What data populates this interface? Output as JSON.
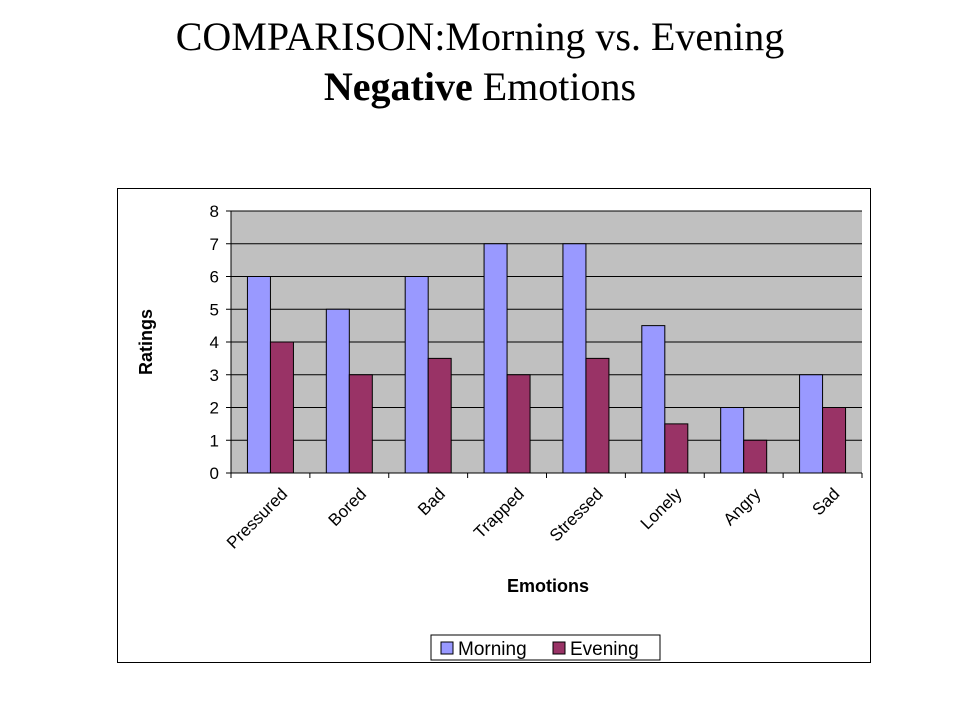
{
  "title": {
    "line1": "COMPARISON:Morning vs. Evening",
    "line2_bold": "Negative",
    "line2_rest": " Emotions"
  },
  "chart_data": {
    "type": "bar",
    "categories": [
      "Pressured",
      "Bored",
      "Bad",
      "Trapped",
      "Stressed",
      "Lonely",
      "Angry",
      "Sad"
    ],
    "series": [
      {
        "name": "Morning",
        "values": [
          6,
          5,
          6,
          7,
          7,
          4.5,
          2,
          3
        ],
        "color": "#9999FF"
      },
      {
        "name": "Evening",
        "values": [
          4,
          3,
          3.5,
          3,
          3.5,
          1.5,
          1,
          2
        ],
        "color": "#993366"
      }
    ],
    "xlabel": "Emotions",
    "ylabel": "Ratings",
    "ylim": [
      0,
      8
    ],
    "yticks": [
      "0",
      "1",
      "2",
      "3",
      "4",
      "5",
      "6",
      "7",
      "8"
    ],
    "plot_background": "#C0C0C0",
    "grid": true,
    "legend": "bottom"
  }
}
